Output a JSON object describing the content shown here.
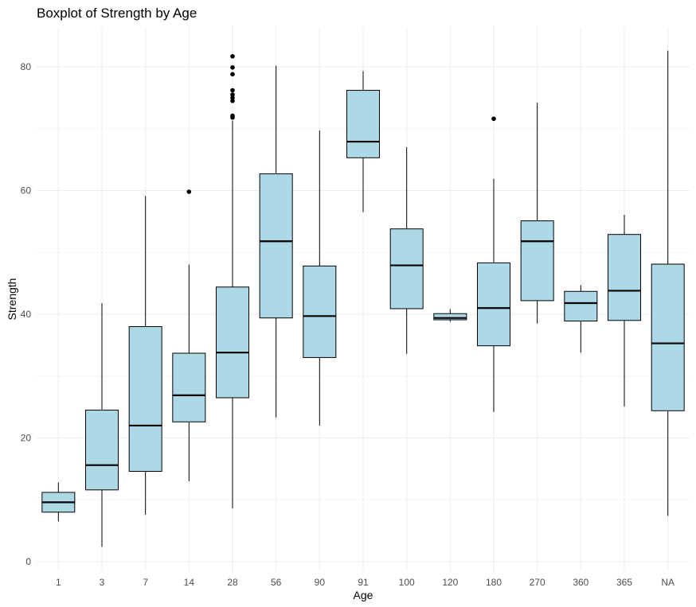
{
  "chart_data": {
    "type": "boxplot",
    "title": "Boxplot of Strength by Age",
    "xlabel": "Age",
    "ylabel": "Strength",
    "ylim": [
      0,
      85
    ],
    "yticks": [
      0,
      20,
      40,
      60,
      80
    ],
    "grid": true,
    "box_fill": "#add8e6",
    "line_color": "#000000",
    "categories": [
      "1",
      "3",
      "7",
      "14",
      "28",
      "56",
      "90",
      "91",
      "100",
      "120",
      "180",
      "270",
      "360",
      "365",
      "NA"
    ],
    "boxes": [
      {
        "category": "1",
        "whisker_low": 6.5,
        "q1": 8.0,
        "median": 9.6,
        "q3": 11.2,
        "whisker_high": 12.8,
        "outliers": []
      },
      {
        "category": "3",
        "whisker_low": 2.4,
        "q1": 11.6,
        "median": 15.6,
        "q3": 24.5,
        "whisker_high": 41.8,
        "outliers": []
      },
      {
        "category": "7",
        "whisker_low": 7.6,
        "q1": 14.6,
        "median": 22.0,
        "q3": 38.0,
        "whisker_high": 59.1,
        "outliers": []
      },
      {
        "category": "14",
        "whisker_low": 13.0,
        "q1": 22.6,
        "median": 26.9,
        "q3": 33.7,
        "whisker_high": 48.0,
        "outliers": [
          59.8
        ]
      },
      {
        "category": "28",
        "whisker_low": 8.6,
        "q1": 26.5,
        "median": 33.8,
        "q3": 44.4,
        "whisker_high": 71.3,
        "outliers": [
          71.8,
          72.1,
          74.5,
          75.0,
          75.5,
          76.2,
          78.8,
          79.9,
          81.7
        ]
      },
      {
        "category": "56",
        "whisker_low": 23.3,
        "q1": 39.4,
        "median": 51.8,
        "q3": 62.7,
        "whisker_high": 80.2,
        "outliers": []
      },
      {
        "category": "90",
        "whisker_low": 22.0,
        "q1": 33.0,
        "median": 39.7,
        "q3": 47.8,
        "whisker_high": 69.7,
        "outliers": []
      },
      {
        "category": "91",
        "whisker_low": 56.5,
        "q1": 65.3,
        "median": 67.9,
        "q3": 76.2,
        "whisker_high": 79.3,
        "outliers": []
      },
      {
        "category": "100",
        "whisker_low": 33.6,
        "q1": 40.9,
        "median": 47.9,
        "q3": 53.8,
        "whisker_high": 67.0,
        "outliers": []
      },
      {
        "category": "120",
        "whisker_low": 38.8,
        "q1": 39.1,
        "median": 39.4,
        "q3": 40.1,
        "whisker_high": 40.8,
        "outliers": []
      },
      {
        "category": "180",
        "whisker_low": 24.2,
        "q1": 34.9,
        "median": 41.0,
        "q3": 48.3,
        "whisker_high": 61.9,
        "outliers": [
          71.6
        ]
      },
      {
        "category": "270",
        "whisker_low": 38.5,
        "q1": 42.2,
        "median": 51.8,
        "q3": 55.1,
        "whisker_high": 74.2,
        "outliers": []
      },
      {
        "category": "360",
        "whisker_low": 33.8,
        "q1": 38.9,
        "median": 41.8,
        "q3": 43.7,
        "whisker_high": 44.7,
        "outliers": []
      },
      {
        "category": "365",
        "whisker_low": 25.1,
        "q1": 39.0,
        "median": 43.8,
        "q3": 52.9,
        "whisker_high": 56.1,
        "outliers": []
      },
      {
        "category": "NA",
        "whisker_low": 7.4,
        "q1": 24.4,
        "median": 35.3,
        "q3": 48.1,
        "whisker_high": 82.6,
        "outliers": []
      }
    ]
  }
}
